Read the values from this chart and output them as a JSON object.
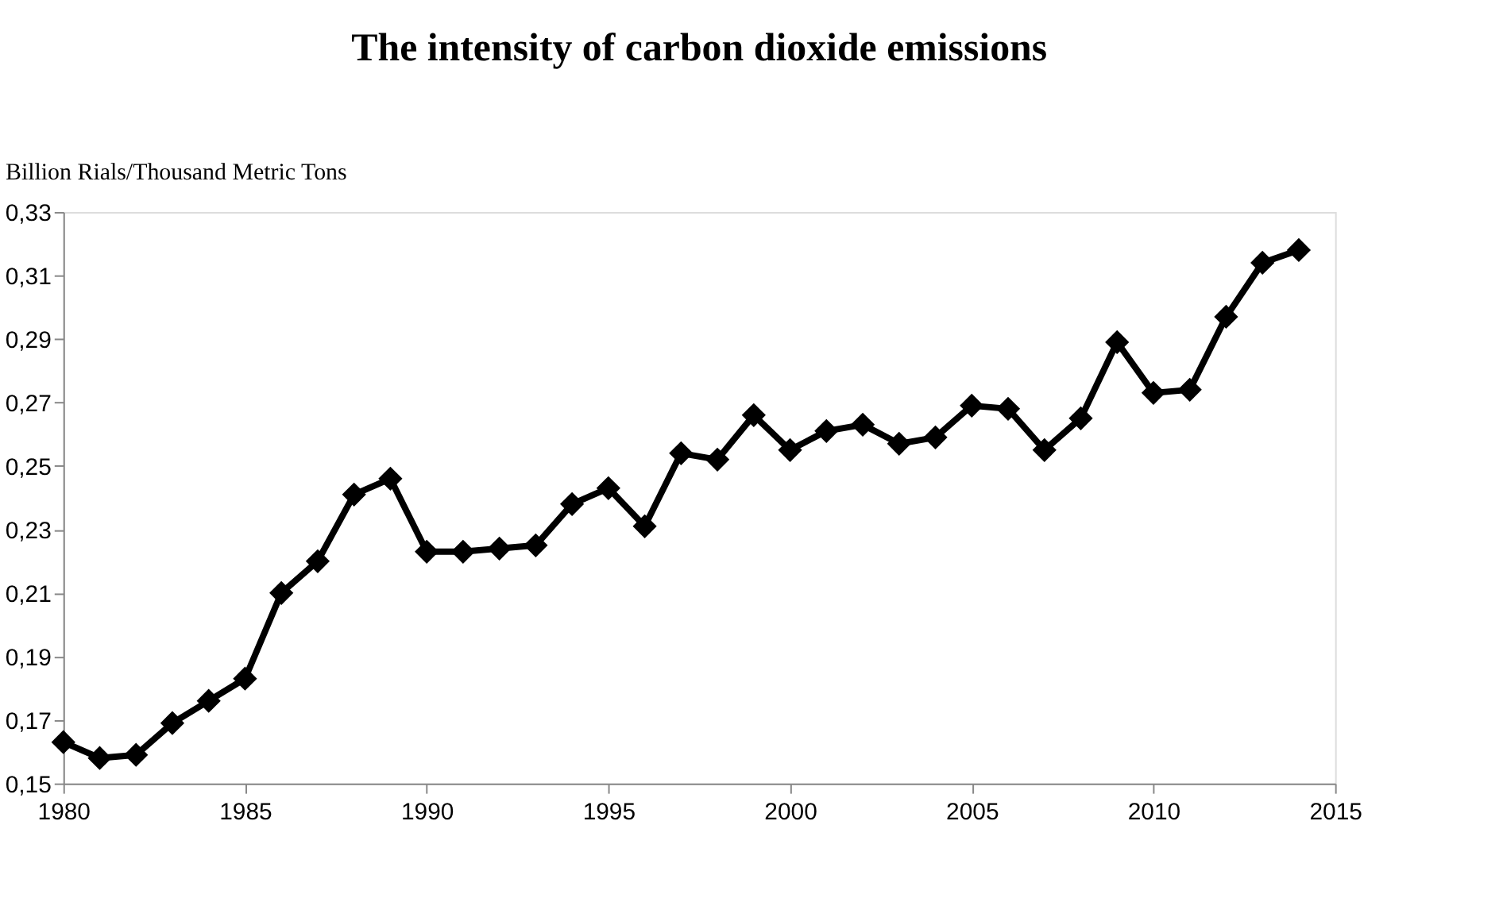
{
  "chart_data": {
    "type": "line",
    "title": "The intensity of carbon dioxide emissions",
    "ylabel": "Billion Rials/Thousand Metric Tons",
    "x": [
      1980,
      1981,
      1982,
      1983,
      1984,
      1985,
      1986,
      1987,
      1988,
      1989,
      1990,
      1991,
      1992,
      1993,
      1994,
      1995,
      1996,
      1997,
      1998,
      1999,
      2000,
      2001,
      2002,
      2003,
      2004,
      2005,
      2006,
      2007,
      2008,
      2009,
      2010,
      2011,
      2012,
      2013,
      2014
    ],
    "series": [
      {
        "color": "#000000",
        "values": [
          0.163,
          0.158,
          0.159,
          0.169,
          0.176,
          0.183,
          0.21,
          0.22,
          0.241,
          0.246,
          0.223,
          0.223,
          0.224,
          0.225,
          0.238,
          0.243,
          0.231,
          0.254,
          0.252,
          0.266,
          0.255,
          0.261,
          0.263,
          0.257,
          0.259,
          0.269,
          0.268,
          0.255,
          0.265,
          0.289,
          0.273,
          0.274,
          0.297,
          0.314,
          0.318
        ]
      }
    ],
    "xlim": [
      1980,
      2015
    ],
    "xticks": [
      1980,
      1985,
      1990,
      1995,
      2000,
      2005,
      2010,
      2015
    ],
    "ylim": [
      0.15,
      0.33
    ],
    "yticks": [
      {
        "value": 0.15,
        "label": "0,15"
      },
      {
        "value": 0.17,
        "label": "0,17"
      },
      {
        "value": 0.19,
        "label": "0,19"
      },
      {
        "value": 0.21,
        "label": "0,21"
      },
      {
        "value": 0.23,
        "label": "0,23"
      },
      {
        "value": 0.25,
        "label": "0,25"
      },
      {
        "value": 0.27,
        "label": "0,27"
      },
      {
        "value": 0.29,
        "label": "0,29"
      },
      {
        "value": 0.31,
        "label": "0,31"
      },
      {
        "value": 0.33,
        "label": "0,33"
      }
    ],
    "grid": false,
    "marker": "diamond",
    "line_style": "solid"
  }
}
